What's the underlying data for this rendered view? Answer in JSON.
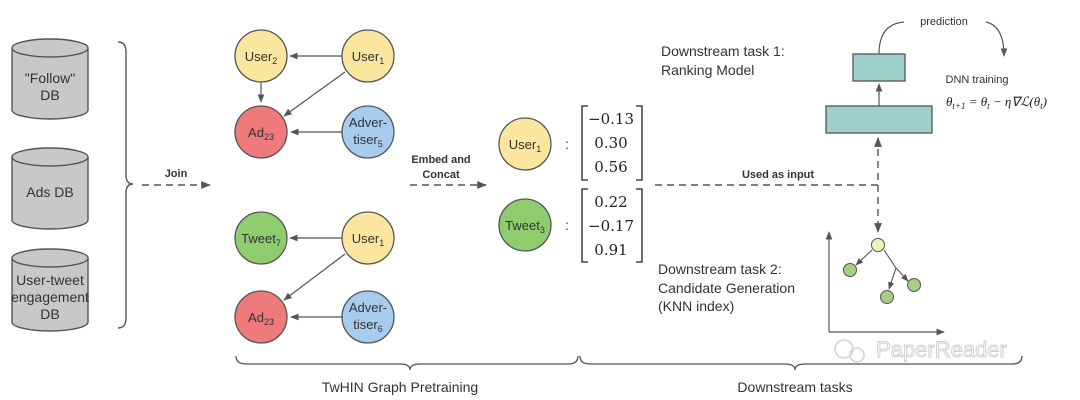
{
  "colors": {
    "db_fill": "#c8c8c8",
    "user": "#fbe6a0",
    "ad": "#ee7a7c",
    "advertiser": "#a8ccee",
    "tweet": "#8fcc6e",
    "dnn": "#9fcfca",
    "knn_dot": "#a3cf83",
    "knn_query": "#eef2b6",
    "stroke": "#555555"
  },
  "databases": {
    "follow": {
      "line1": "\"Follow\"",
      "line2": "DB"
    },
    "ads": {
      "line1": "Ads DB"
    },
    "engagement": {
      "line1": "User-tweet",
      "line2": "engagement",
      "line3": "DB"
    }
  },
  "arrows": {
    "join": "Join",
    "embed_line1": "Embed and",
    "embed_line2": "Concat",
    "used_as_input": "Used as input"
  },
  "graph_top": {
    "user2": {
      "base": "User",
      "sub": "2"
    },
    "user1": {
      "base": "User",
      "sub": "1"
    },
    "ad": {
      "base": "Ad",
      "sub": "23"
    },
    "advertiser": {
      "line1": "Adver-",
      "line2": "tiser",
      "sub": "5"
    }
  },
  "graph_bottom": {
    "tweet": {
      "base": "Tweet",
      "sub": "7"
    },
    "user1": {
      "base": "User",
      "sub": "1"
    },
    "ad": {
      "base": "Ad",
      "sub": "23"
    },
    "advertiser": {
      "line1": "Adver-",
      "line2": "tiser",
      "sub": "6"
    }
  },
  "embeddings": {
    "user": {
      "base": "User",
      "sub": "1",
      "colon": ":",
      "values": [
        "−0.13",
        "0.30",
        "0.56"
      ]
    },
    "tweet": {
      "base": "Tweet",
      "sub": "3",
      "colon": ":",
      "values": [
        "0.22",
        "−0.17",
        "0.91"
      ]
    }
  },
  "task1": {
    "line1": "Downstream task 1:",
    "line2": "Ranking Model"
  },
  "task2": {
    "line1": "Downstream task 2:",
    "line2": "Candidate Generation",
    "line3": "(KNN index)"
  },
  "dnn": {
    "prediction": "prediction",
    "training": "DNN training",
    "formula": "θ_{t+1} = θ_t − η∇ℒ(θ_t)"
  },
  "sections": {
    "pretraining": "TwHIN Graph Pretraining",
    "downstream": "Downstream tasks"
  },
  "watermark": "PaperReader"
}
